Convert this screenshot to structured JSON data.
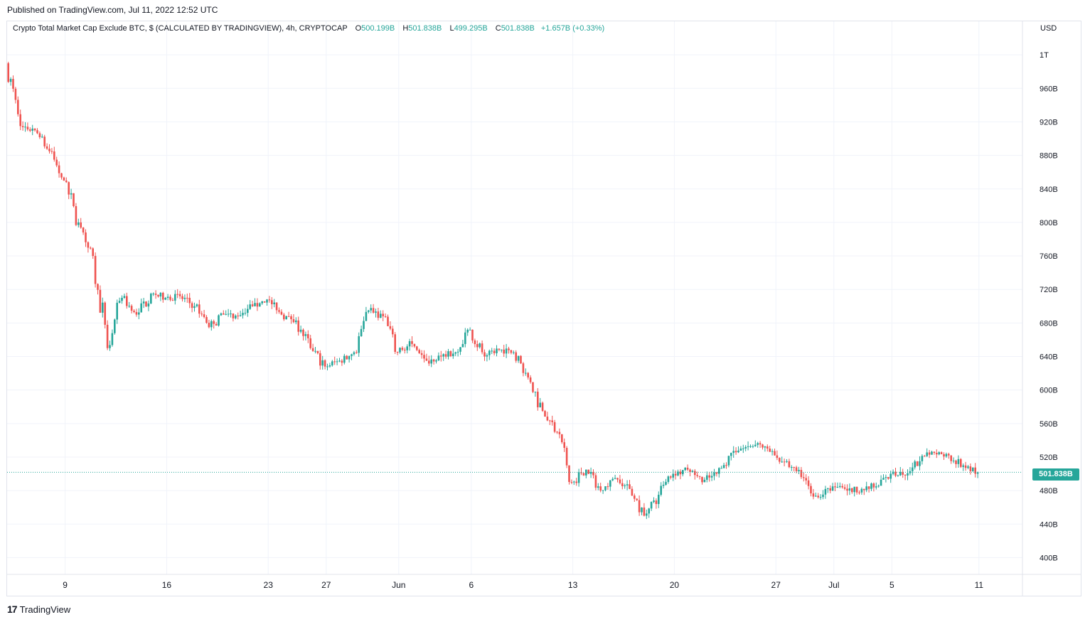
{
  "header": {
    "published": "Published on TradingView.com, Jul 11, 2022 12:52 UTC"
  },
  "legend": {
    "symbol": "Crypto Total Market Cap Exclude BTC, $ (CALCULATED BY TRADINGVIEW), 4h, CRYPTOCAP",
    "o_label": "O",
    "o_value": "500.199B",
    "h_label": "H",
    "h_value": "501.838B",
    "l_label": "L",
    "l_value": "499.295B",
    "c_label": "C",
    "c_value": "501.838B",
    "change": "+1.657B (+0.33%)"
  },
  "currency": "USD",
  "last_price_label": "501.838B",
  "footer": {
    "brand": "TradingView",
    "logo_text": "17"
  },
  "colors": {
    "up": "#26a69a",
    "down": "#ef5350",
    "grid": "#f0f3fa",
    "last_price_line": "#26a69a"
  },
  "chart_data": {
    "type": "candlestick",
    "title": "Crypto Total Market Cap Exclude BTC",
    "interval": "4h",
    "y_unit": "USD (B)",
    "ylim": [
      380,
      1040
    ],
    "y_ticks": [
      400,
      440,
      480,
      520,
      560,
      600,
      640,
      680,
      720,
      760,
      800,
      840,
      880,
      920,
      960,
      1000
    ],
    "y_tick_labels": [
      "400B",
      "440B",
      "480B",
      "520B",
      "560B",
      "600B",
      "640B",
      "680B",
      "720B",
      "760B",
      "800B",
      "840B",
      "880B",
      "920B",
      "960B",
      "1T"
    ],
    "x_range": [
      "2022-05-05",
      "2022-07-14"
    ],
    "x_ticks": [
      {
        "date": "2022-05-09",
        "label": "9"
      },
      {
        "date": "2022-05-16",
        "label": "16"
      },
      {
        "date": "2022-05-23",
        "label": "23"
      },
      {
        "date": "2022-05-27",
        "label": "27"
      },
      {
        "date": "2022-06-01",
        "label": "Jun"
      },
      {
        "date": "2022-06-06",
        "label": "6"
      },
      {
        "date": "2022-06-13",
        "label": "13"
      },
      {
        "date": "2022-06-20",
        "label": "20"
      },
      {
        "date": "2022-06-27",
        "label": "27"
      },
      {
        "date": "2022-07-01",
        "label": "Jul"
      },
      {
        "date": "2022-07-05",
        "label": "5"
      },
      {
        "date": "2022-07-11",
        "label": "11"
      }
    ],
    "grid": true,
    "last_price": 501.838,
    "series": [
      {
        "date": "2022-05-05",
        "close": 990
      },
      {
        "date": "2022-05-06",
        "close": 915
      },
      {
        "date": "2022-05-07",
        "close": 910
      },
      {
        "date": "2022-05-08",
        "close": 885
      },
      {
        "date": "2022-05-09",
        "close": 850
      },
      {
        "date": "2022-05-10",
        "close": 800
      },
      {
        "date": "2022-05-11",
        "close": 760
      },
      {
        "date": "2022-05-12",
        "close": 650
      },
      {
        "date": "2022-05-13",
        "close": 710
      },
      {
        "date": "2022-05-14",
        "close": 690
      },
      {
        "date": "2022-05-15",
        "close": 715
      },
      {
        "date": "2022-05-16",
        "close": 710
      },
      {
        "date": "2022-05-17",
        "close": 712
      },
      {
        "date": "2022-05-18",
        "close": 700
      },
      {
        "date": "2022-05-19",
        "close": 675
      },
      {
        "date": "2022-05-20",
        "close": 690
      },
      {
        "date": "2022-05-21",
        "close": 688
      },
      {
        "date": "2022-05-22",
        "close": 700
      },
      {
        "date": "2022-05-23",
        "close": 708
      },
      {
        "date": "2022-05-24",
        "close": 690
      },
      {
        "date": "2022-05-25",
        "close": 683
      },
      {
        "date": "2022-05-26",
        "close": 650
      },
      {
        "date": "2022-05-27",
        "close": 628
      },
      {
        "date": "2022-05-28",
        "close": 635
      },
      {
        "date": "2022-05-29",
        "close": 645
      },
      {
        "date": "2022-05-30",
        "close": 695
      },
      {
        "date": "2022-05-31",
        "close": 688
      },
      {
        "date": "2022-06-01",
        "close": 645
      },
      {
        "date": "2022-06-02",
        "close": 655
      },
      {
        "date": "2022-06-03",
        "close": 635
      },
      {
        "date": "2022-06-04",
        "close": 640
      },
      {
        "date": "2022-06-05",
        "close": 645
      },
      {
        "date": "2022-06-06",
        "close": 672
      },
      {
        "date": "2022-06-07",
        "close": 640
      },
      {
        "date": "2022-06-08",
        "close": 648
      },
      {
        "date": "2022-06-09",
        "close": 645
      },
      {
        "date": "2022-06-10",
        "close": 615
      },
      {
        "date": "2022-06-11",
        "close": 575
      },
      {
        "date": "2022-06-12",
        "close": 550
      },
      {
        "date": "2022-06-13",
        "close": 490
      },
      {
        "date": "2022-06-14",
        "close": 505
      },
      {
        "date": "2022-06-15",
        "close": 480
      },
      {
        "date": "2022-06-16",
        "close": 495
      },
      {
        "date": "2022-06-17",
        "close": 482
      },
      {
        "date": "2022-06-18",
        "close": 450
      },
      {
        "date": "2022-06-19",
        "close": 475
      },
      {
        "date": "2022-06-20",
        "close": 500
      },
      {
        "date": "2022-06-21",
        "close": 505
      },
      {
        "date": "2022-06-22",
        "close": 490
      },
      {
        "date": "2022-06-23",
        "close": 500
      },
      {
        "date": "2022-06-24",
        "close": 525
      },
      {
        "date": "2022-06-25",
        "close": 532
      },
      {
        "date": "2022-06-26",
        "close": 535
      },
      {
        "date": "2022-06-27",
        "close": 522
      },
      {
        "date": "2022-06-28",
        "close": 508
      },
      {
        "date": "2022-06-29",
        "close": 495
      },
      {
        "date": "2022-06-30",
        "close": 472
      },
      {
        "date": "2022-07-01",
        "close": 485
      },
      {
        "date": "2022-07-02",
        "close": 480
      },
      {
        "date": "2022-07-03",
        "close": 482
      },
      {
        "date": "2022-07-04",
        "close": 485
      },
      {
        "date": "2022-07-05",
        "close": 500
      },
      {
        "date": "2022-07-06",
        "close": 498
      },
      {
        "date": "2022-07-07",
        "close": 515
      },
      {
        "date": "2022-07-08",
        "close": 525
      },
      {
        "date": "2022-07-09",
        "close": 522
      },
      {
        "date": "2022-07-10",
        "close": 510
      },
      {
        "date": "2022-07-11",
        "close": 501.8
      }
    ]
  }
}
